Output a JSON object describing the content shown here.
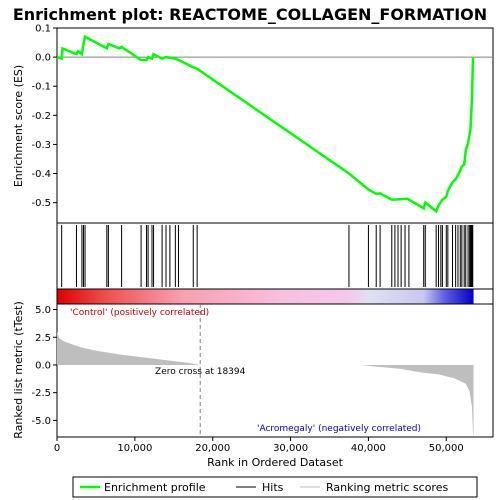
{
  "chart_data": {
    "type": "line",
    "title": "Enrichment plot: REACTOME_COLLAGEN_FORMATION",
    "xlabel": "Rank in Ordered Dataset",
    "ylabel_top": "Enrichment score (ES)",
    "ylabel_bottom": "Ranked list metric (tTest)",
    "xlim": [
      0,
      56000
    ],
    "x_ticks": [
      0,
      10000,
      20000,
      30000,
      40000,
      50000
    ],
    "x_tick_labels": [
      "0",
      "10,000",
      "20,000",
      "30,000",
      "40,000",
      "50,000"
    ],
    "es_ylim": [
      -0.57,
      0.1
    ],
    "es_ticks": [
      0.1,
      0.0,
      -0.1,
      -0.2,
      -0.3,
      -0.4,
      -0.5
    ],
    "es_tick_labels": [
      "0.1",
      "0.0",
      "-0.1",
      "-0.2",
      "-0.3",
      "-0.4",
      "-0.5"
    ],
    "metric_ylim": [
      -6.5,
      5.5
    ],
    "metric_ticks": [
      5.0,
      2.5,
      0.0,
      -2.5,
      -5.0
    ],
    "metric_tick_labels": [
      "5.0",
      "2.5",
      "0.0",
      "-2.5",
      "-5.0"
    ],
    "zero_cross": 18394,
    "zero_cross_label": "Zero cross at 18394",
    "positive_label": "'Control' (positively correlated)",
    "negative_label": "'Acromegaly' (negatively correlated)",
    "total_ranks": 53500,
    "es_curve": [
      [
        0,
        0.0
      ],
      [
        600,
        -0.005
      ],
      [
        700,
        0.03
      ],
      [
        2500,
        0.01
      ],
      [
        2700,
        0.02
      ],
      [
        3200,
        0.01
      ],
      [
        3400,
        0.045
      ],
      [
        3600,
        0.07
      ],
      [
        6400,
        0.03
      ],
      [
        6600,
        0.045
      ],
      [
        8000,
        0.03
      ],
      [
        8300,
        0.035
      ],
      [
        10800,
        -0.01
      ],
      [
        11500,
        -0.01
      ],
      [
        11700,
        0.0
      ],
      [
        12200,
        -0.005
      ],
      [
        12400,
        0.01
      ],
      [
        13500,
        -0.005
      ],
      [
        14000,
        0.0
      ],
      [
        15200,
        -0.005
      ],
      [
        15600,
        -0.01
      ],
      [
        17500,
        -0.035
      ],
      [
        18000,
        -0.04
      ],
      [
        37500,
        -0.4
      ],
      [
        40000,
        -0.455
      ],
      [
        41000,
        -0.47
      ],
      [
        41500,
        -0.468
      ],
      [
        43000,
        -0.49
      ],
      [
        45000,
        -0.487
      ],
      [
        46500,
        -0.51
      ],
      [
        47100,
        -0.52
      ],
      [
        47300,
        -0.5
      ],
      [
        48700,
        -0.53
      ],
      [
        49000,
        -0.51
      ],
      [
        49500,
        -0.49
      ],
      [
        50000,
        -0.48
      ],
      [
        50200,
        -0.46
      ],
      [
        50800,
        -0.43
      ],
      [
        51200,
        -0.42
      ],
      [
        51500,
        -0.405
      ],
      [
        51800,
        -0.39
      ],
      [
        52000,
        -0.375
      ],
      [
        52300,
        -0.37
      ],
      [
        52500,
        -0.32
      ],
      [
        52800,
        -0.295
      ],
      [
        53100,
        -0.25
      ],
      [
        53200,
        -0.2
      ],
      [
        53300,
        -0.14
      ],
      [
        53350,
        -0.08
      ],
      [
        53400,
        -0.03
      ],
      [
        53450,
        0.0
      ]
    ],
    "hits": [
      600,
      2500,
      3200,
      3400,
      3600,
      6400,
      6600,
      8300,
      10800,
      11500,
      11700,
      12200,
      12400,
      13500,
      14000,
      14500,
      15200,
      15600,
      17500,
      18000,
      37500,
      40000,
      41000,
      41500,
      43000,
      43400,
      43800,
      44200,
      44700,
      45200,
      47100,
      47300,
      48700,
      49000,
      49300,
      49500,
      50000,
      50200,
      50800,
      51200,
      51500,
      51800,
      52000,
      52300,
      52500,
      52800,
      53000,
      53100,
      53200,
      53300,
      53400
    ],
    "metric_curve": [
      [
        0,
        3.0
      ],
      [
        300,
        2.4
      ],
      [
        1000,
        2.1
      ],
      [
        3000,
        1.6
      ],
      [
        5000,
        1.3
      ],
      [
        8000,
        0.95
      ],
      [
        12000,
        0.6
      ],
      [
        15000,
        0.35
      ],
      [
        17000,
        0.18
      ],
      [
        18394,
        0.0
      ],
      [
        39000,
        0.0
      ],
      [
        41000,
        -0.15
      ],
      [
        44000,
        -0.35
      ],
      [
        47000,
        -0.7
      ],
      [
        49000,
        -0.85
      ],
      [
        51000,
        -1.2
      ],
      [
        52500,
        -1.7
      ],
      [
        53000,
        -2.4
      ],
      [
        53300,
        -3.8
      ],
      [
        53450,
        -6.3
      ],
      [
        53500,
        -6.3
      ]
    ],
    "legend": [
      "Enrichment profile",
      "Hits",
      "Ranking metric scores"
    ],
    "colors": {
      "es_line": "#00ff00",
      "hits": "#000000",
      "metric_fill": "#bebebe",
      "zero_line": "#808080",
      "positive_text": "#cc0000",
      "negative_text": "#0000cc"
    }
  }
}
